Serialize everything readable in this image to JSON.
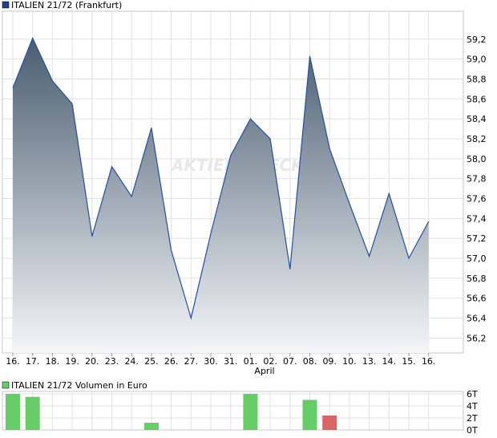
{
  "chart_data": [
    {
      "type": "area",
      "title": "ITALIEN 21/72 (Frankfurt)",
      "legend_color": "#1f3f8f",
      "categories": [
        "16.",
        "17.",
        "18.",
        "19.",
        "20.",
        "23.",
        "24.",
        "25.",
        "26.",
        "27.",
        "30.",
        "31.",
        "01.",
        "02.",
        "07.",
        "08.",
        "09.",
        "10.",
        "13.",
        "14.",
        "15.",
        "16."
      ],
      "month_label": "April",
      "values": [
        58.71,
        59.21,
        58.78,
        58.55,
        57.22,
        57.92,
        57.62,
        58.31,
        57.08,
        56.4,
        57.25,
        58.03,
        58.4,
        58.2,
        56.89,
        59.03,
        58.1,
        57.55,
        57.02,
        57.65,
        57.0,
        57.37
      ],
      "ylim": [
        56.05,
        59.48
      ],
      "yticks": [
        "56,2",
        "56,4",
        "56,6",
        "56,8",
        "57,0",
        "57,2",
        "57,4",
        "57,6",
        "57,8",
        "58,0",
        "58,2",
        "58,4",
        "58,6",
        "58,8",
        "59,0",
        "59,2"
      ],
      "ytick_values": [
        56.2,
        56.4,
        56.6,
        56.8,
        57.0,
        57.2,
        57.4,
        57.6,
        57.8,
        58.0,
        58.2,
        58.4,
        58.6,
        58.8,
        59.0,
        59.2
      ],
      "watermark": "AKTIEN CHECK",
      "line_color": "#1f4fa8",
      "fill_top": "#4a5d70",
      "fill_bottom": "#f4f6f8",
      "grid": true
    },
    {
      "type": "bar",
      "title": "ITALIEN 21/72 Volumen in Euro",
      "legend_color": "#66cc66",
      "categories": [
        "16.",
        "17.",
        "18.",
        "19.",
        "20.",
        "23.",
        "24.",
        "25.",
        "26.",
        "27.",
        "30.",
        "31.",
        "01.",
        "02.",
        "07.",
        "08.",
        "09.",
        "10.",
        "13.",
        "14.",
        "15.",
        "16."
      ],
      "values": [
        6.0,
        5.5,
        0,
        0,
        0,
        0,
        0,
        1.2,
        0,
        0,
        0,
        0,
        6.0,
        0,
        0,
        5.0,
        2.4,
        0,
        0,
        0,
        0,
        0
      ],
      "bar_colors": [
        "#66cc66",
        "#66cc66",
        "#66cc66",
        "#66cc66",
        "#66cc66",
        "#66cc66",
        "#66cc66",
        "#66cc66",
        "#66cc66",
        "#66cc66",
        "#66cc66",
        "#66cc66",
        "#66cc66",
        "#66cc66",
        "#66cc66",
        "#66cc66",
        "#d86464",
        "#66cc66",
        "#66cc66",
        "#66cc66",
        "#66cc66",
        "#66cc66"
      ],
      "ylim": [
        0,
        6.4
      ],
      "yticks": [
        "0T",
        "2T",
        "4T",
        "6T"
      ],
      "ytick_values": [
        0,
        2,
        4,
        6
      ],
      "grid": true
    }
  ]
}
